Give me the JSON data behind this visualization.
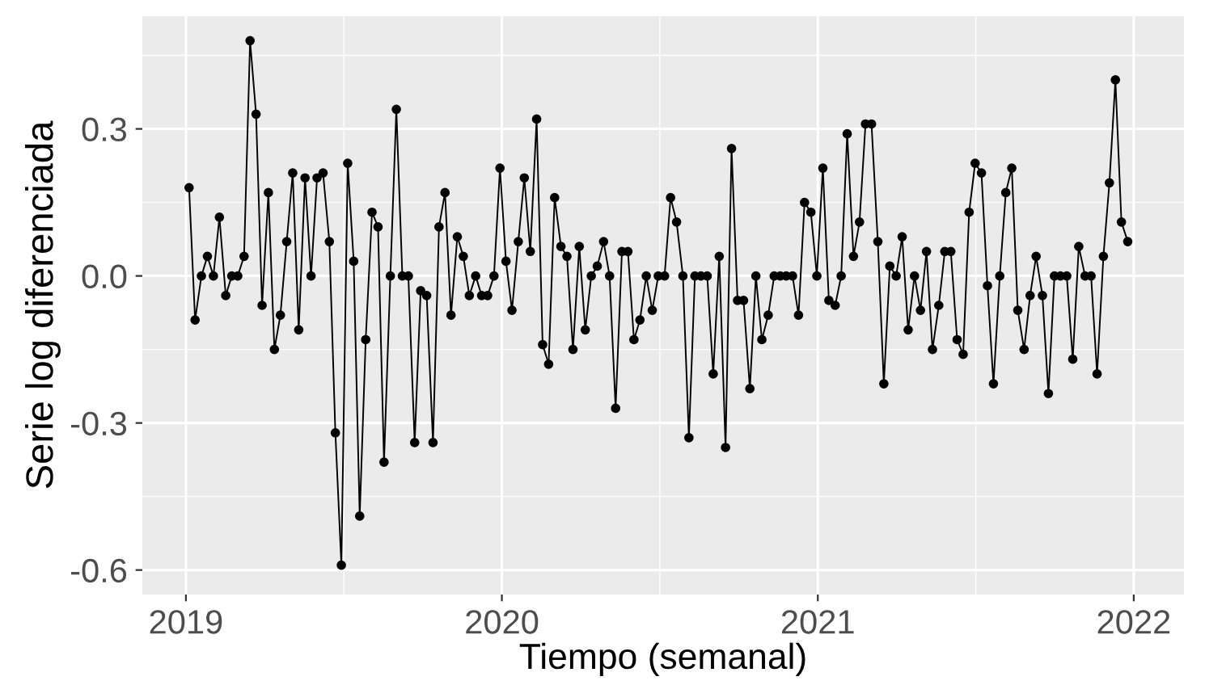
{
  "chart_data": {
    "type": "line",
    "xlabel": "Tiempo (semanal)",
    "ylabel": "Serie log diferenciada",
    "xlim": [
      2018.862,
      2022.159
    ],
    "ylim": [
      -0.65,
      0.53
    ],
    "xticks": [
      2019,
      2020,
      2021,
      2022
    ],
    "yticks": [
      {
        "value": -0.6,
        "label": "-0.6"
      },
      {
        "value": -0.3,
        "label": "-0.3"
      },
      {
        "value": 0.0,
        "label": "0.0"
      },
      {
        "value": 0.3,
        "label": "0.3"
      }
    ],
    "grid": true,
    "marker": "circle",
    "line_style": "solid",
    "series": [
      {
        "color": "#000000",
        "x": [
          2019.01,
          2019.029,
          2019.049,
          2019.068,
          2019.087,
          2019.106,
          2019.126,
          2019.145,
          2019.164,
          2019.184,
          2019.203,
          2019.222,
          2019.241,
          2019.261,
          2019.28,
          2019.299,
          2019.319,
          2019.338,
          2019.357,
          2019.377,
          2019.396,
          2019.415,
          2019.434,
          2019.454,
          2019.473,
          2019.492,
          2019.512,
          2019.531,
          2019.55,
          2019.569,
          2019.589,
          2019.608,
          2019.627,
          2019.647,
          2019.666,
          2019.685,
          2019.704,
          2019.724,
          2019.743,
          2019.762,
          2019.782,
          2019.801,
          2019.82,
          2019.839,
          2019.859,
          2019.878,
          2019.897,
          2019.917,
          2019.936,
          2019.955,
          2019.975,
          2019.994,
          2020.013,
          2020.032,
          2020.052,
          2020.071,
          2020.09,
          2020.11,
          2020.129,
          2020.148,
          2020.167,
          2020.187,
          2020.206,
          2020.225,
          2020.245,
          2020.264,
          2020.283,
          2020.302,
          2020.322,
          2020.341,
          2020.36,
          2020.38,
          2020.399,
          2020.418,
          2020.437,
          2020.457,
          2020.476,
          2020.495,
          2020.515,
          2020.534,
          2020.553,
          2020.573,
          2020.592,
          2020.611,
          2020.63,
          2020.65,
          2020.669,
          2020.688,
          2020.708,
          2020.727,
          2020.746,
          2020.765,
          2020.785,
          2020.804,
          2020.823,
          2020.843,
          2020.862,
          2020.881,
          2020.9,
          2020.92,
          2020.939,
          2020.958,
          2020.978,
          2020.997,
          2021.016,
          2021.035,
          2021.055,
          2021.074,
          2021.093,
          2021.113,
          2021.132,
          2021.151,
          2021.17,
          2021.19,
          2021.209,
          2021.228,
          2021.248,
          2021.267,
          2021.286,
          2021.306,
          2021.325,
          2021.344,
          2021.363,
          2021.383,
          2021.402,
          2021.421,
          2021.441,
          2021.46,
          2021.479,
          2021.498,
          2021.518,
          2021.537,
          2021.556,
          2021.576,
          2021.595,
          2021.614,
          2021.633,
          2021.653,
          2021.672,
          2021.691,
          2021.711,
          2021.73,
          2021.749,
          2021.768,
          2021.788,
          2021.807,
          2021.826,
          2021.846,
          2021.865,
          2021.884,
          2021.904,
          2021.923,
          2021.942,
          2021.961,
          2021.981
        ],
        "values": [
          0.18,
          -0.09,
          0.0,
          0.04,
          0.0,
          0.12,
          -0.04,
          0.0,
          0.0,
          0.04,
          0.48,
          0.33,
          -0.06,
          0.17,
          -0.15,
          -0.08,
          0.07,
          0.21,
          -0.11,
          0.2,
          0.0,
          0.2,
          0.21,
          0.07,
          -0.32,
          -0.59,
          0.23,
          0.03,
          -0.49,
          -0.13,
          0.13,
          0.1,
          -0.38,
          0.0,
          0.34,
          0.0,
          0.0,
          -0.34,
          -0.03,
          -0.04,
          -0.34,
          0.1,
          0.17,
          -0.08,
          0.08,
          0.04,
          -0.04,
          0.0,
          -0.04,
          -0.04,
          0.0,
          0.22,
          0.03,
          -0.07,
          0.07,
          0.2,
          0.05,
          0.32,
          -0.14,
          -0.18,
          0.16,
          0.06,
          0.04,
          -0.15,
          0.06,
          -0.11,
          0.0,
          0.02,
          0.07,
          0.0,
          -0.27,
          0.05,
          0.05,
          -0.13,
          -0.09,
          0.0,
          -0.07,
          0.0,
          0.0,
          0.16,
          0.11,
          0.0,
          -0.33,
          0.0,
          0.0,
          0.0,
          -0.2,
          0.04,
          -0.35,
          0.26,
          -0.05,
          -0.05,
          -0.23,
          0.0,
          -0.13,
          -0.08,
          0.0,
          0.0,
          0.0,
          0.0,
          -0.08,
          0.15,
          0.13,
          0.0,
          0.22,
          -0.05,
          -0.06,
          0.0,
          0.29,
          0.04,
          0.11,
          0.31,
          0.31,
          0.07,
          -0.22,
          0.02,
          0.0,
          0.08,
          -0.11,
          0.0,
          -0.07,
          0.05,
          -0.15,
          -0.06,
          0.05,
          0.05,
          -0.13,
          -0.16,
          0.13,
          0.23,
          0.21,
          -0.02,
          -0.22,
          0.0,
          0.17,
          0.22,
          -0.07,
          -0.15,
          -0.04,
          0.04,
          -0.04,
          -0.24,
          0.0,
          0.0,
          0.0,
          -0.17,
          0.06,
          0.0,
          0.0,
          -0.2,
          0.04,
          0.19,
          0.4,
          0.11,
          0.07
        ]
      }
    ]
  }
}
